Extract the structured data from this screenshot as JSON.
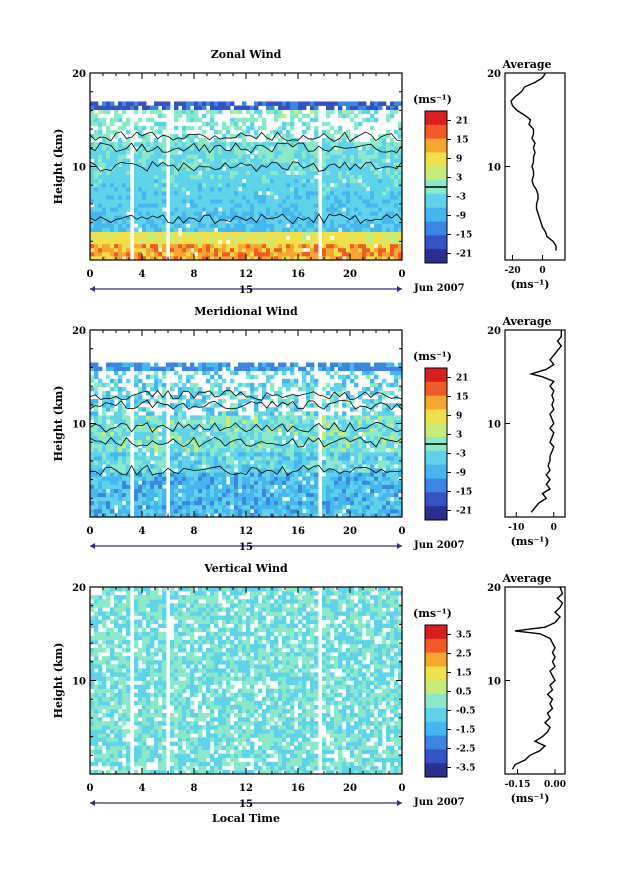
{
  "chart_data": [
    {
      "type": "heatmap",
      "title": "Zonal Wind",
      "ylabel": "Height (km)",
      "y_ticks": [
        "20",
        "10"
      ],
      "x_ticks": [
        "0",
        "4",
        "8",
        "12",
        "16",
        "20",
        "0"
      ],
      "day_label": "15",
      "date_label": "Jun 2007",
      "xlim": [
        0,
        24
      ],
      "ylim": [
        0,
        20
      ],
      "colorbar": {
        "unit": "(ms⁻¹)",
        "labels": [
          "21",
          "15",
          "9",
          "3",
          "-3",
          "-9",
          "-15",
          "-21"
        ],
        "range": [
          -24,
          24
        ]
      },
      "profile": {
        "title": "Average",
        "y_ticks": [
          "20",
          "10"
        ],
        "x_ticks": [
          "-20",
          "0"
        ],
        "xlabel": "(ms⁻¹)",
        "xlim": [
          -25,
          15
        ],
        "ylim": [
          0,
          20
        ],
        "points": [
          [
            9,
            1
          ],
          [
            9,
            1.5
          ],
          [
            7,
            2
          ],
          [
            3,
            2.5
          ],
          [
            2,
            3
          ],
          [
            0,
            3.5
          ],
          [
            -1,
            4
          ],
          [
            -2,
            4.5
          ],
          [
            -3,
            5
          ],
          [
            -4,
            5.5
          ],
          [
            -4,
            6
          ],
          [
            -3,
            6.5
          ],
          [
            -3,
            7
          ],
          [
            -4,
            7.5
          ],
          [
            -6,
            8
          ],
          [
            -7,
            8.5
          ],
          [
            -6,
            9
          ],
          [
            -6,
            9.5
          ],
          [
            -7,
            10
          ],
          [
            -6,
            10.5
          ],
          [
            -6,
            11
          ],
          [
            -5,
            11.5
          ],
          [
            -6,
            12
          ],
          [
            -5,
            12.5
          ],
          [
            -7,
            13
          ],
          [
            -6,
            13.5
          ],
          [
            -6,
            14
          ],
          [
            -9,
            14.5
          ],
          [
            -8,
            15
          ],
          [
            -12,
            15.5
          ],
          [
            -17,
            16
          ],
          [
            -20,
            16.5
          ],
          [
            -21,
            17
          ],
          [
            -18,
            17.5
          ],
          [
            -14,
            18
          ],
          [
            -12,
            18.5
          ],
          [
            -5,
            19
          ],
          [
            0,
            19.5
          ],
          [
            2,
            20
          ]
        ]
      }
    },
    {
      "type": "heatmap",
      "title": "Meridional Wind",
      "ylabel": "Height (km)",
      "y_ticks": [
        "20",
        "10"
      ],
      "x_ticks": [
        "0",
        "4",
        "8",
        "12",
        "16",
        "20",
        "0"
      ],
      "day_label": "15",
      "date_label": "Jun 2007",
      "xlim": [
        0,
        24
      ],
      "ylim": [
        0,
        20
      ],
      "colorbar": {
        "unit": "(ms⁻¹)",
        "labels": [
          "21",
          "15",
          "9",
          "3",
          "-3",
          "-9",
          "-15",
          "-21"
        ],
        "range": [
          -24,
          24
        ]
      },
      "profile": {
        "title": "Average",
        "y_ticks": [
          "20",
          "10"
        ],
        "x_ticks": [
          "-10",
          "0"
        ],
        "xlabel": "(ms⁻¹)",
        "xlim": [
          -13,
          3
        ],
        "ylim": [
          0,
          20
        ],
        "points": [
          [
            -6,
            0.5
          ],
          [
            -5,
            1
          ],
          [
            -4,
            1.5
          ],
          [
            -2,
            2
          ],
          [
            -3,
            2.5
          ],
          [
            -1,
            3
          ],
          [
            -2,
            3.5
          ],
          [
            -1,
            4
          ],
          [
            -2,
            4.5
          ],
          [
            -1,
            5
          ],
          [
            -1.5,
            5.5
          ],
          [
            -1,
            6
          ],
          [
            -1,
            6.5
          ],
          [
            -0.5,
            7
          ],
          [
            0,
            7.5
          ],
          [
            -1,
            8
          ],
          [
            -0.5,
            8.5
          ],
          [
            0,
            9
          ],
          [
            -1,
            9.5
          ],
          [
            0,
            10
          ],
          [
            -0.5,
            10.5
          ],
          [
            -1,
            11
          ],
          [
            0,
            11.5
          ],
          [
            -0.5,
            12
          ],
          [
            0,
            12.5
          ],
          [
            -0.5,
            13
          ],
          [
            0,
            13.5
          ],
          [
            -1,
            14
          ],
          [
            0,
            14.5
          ],
          [
            -3,
            15
          ],
          [
            -6,
            15.3
          ],
          [
            -2,
            15.8
          ],
          [
            0,
            16.3
          ],
          [
            -1,
            16.8
          ],
          [
            0,
            17.3
          ],
          [
            1,
            17.8
          ],
          [
            2,
            18.3
          ],
          [
            1,
            18.8
          ],
          [
            2,
            19.3
          ],
          [
            2,
            20
          ]
        ]
      }
    },
    {
      "type": "heatmap",
      "title": "Vertical Wind",
      "ylabel": "Height (km)",
      "xlabel": "Local Time",
      "y_ticks": [
        "20",
        "10"
      ],
      "x_ticks": [
        "0",
        "4",
        "8",
        "12",
        "16",
        "20",
        "0"
      ],
      "day_label": "15",
      "date_label": "Jun 2007",
      "xlim": [
        0,
        24
      ],
      "ylim": [
        0,
        20
      ],
      "colorbar": {
        "unit": "(ms⁻¹)",
        "labels": [
          "3.5",
          "2.5",
          "1.5",
          "0.5",
          "-0.5",
          "-1.5",
          "-2.5",
          "-3.5"
        ],
        "range": [
          -4,
          4
        ]
      },
      "profile": {
        "title": "Average",
        "y_ticks": [
          "20",
          "10"
        ],
        "x_ticks": [
          "-0.15",
          "0.00"
        ],
        "xlabel": "(ms⁻¹)",
        "xlim": [
          -0.2,
          0.04
        ],
        "ylim": [
          0,
          20
        ],
        "points": [
          [
            -0.17,
            0.5
          ],
          [
            -0.16,
            1
          ],
          [
            -0.12,
            1.5
          ],
          [
            -0.1,
            2
          ],
          [
            -0.06,
            2.5
          ],
          [
            -0.04,
            3
          ],
          [
            -0.08,
            3.5
          ],
          [
            -0.05,
            4
          ],
          [
            -0.03,
            4.5
          ],
          [
            -0.02,
            5
          ],
          [
            -0.04,
            5.5
          ],
          [
            -0.02,
            6
          ],
          [
            -0.03,
            6.5
          ],
          [
            -0.01,
            7
          ],
          [
            -0.02,
            7.5
          ],
          [
            -0.01,
            8
          ],
          [
            -0.03,
            8.5
          ],
          [
            -0.01,
            9
          ],
          [
            -0.02,
            9.5
          ],
          [
            0.0,
            10
          ],
          [
            -0.01,
            10.5
          ],
          [
            -0.02,
            11
          ],
          [
            0.0,
            11.5
          ],
          [
            -0.01,
            12
          ],
          [
            0.0,
            12.5
          ],
          [
            -0.01,
            13
          ],
          [
            0.0,
            13.5
          ],
          [
            -0.01,
            14
          ],
          [
            -0.02,
            14.5
          ],
          [
            -0.06,
            15
          ],
          [
            -0.16,
            15.3
          ],
          [
            -0.04,
            15.7
          ],
          [
            0.0,
            16.2
          ],
          [
            0.02,
            16.8
          ],
          [
            0.0,
            17.3
          ],
          [
            0.02,
            17.8
          ],
          [
            0.03,
            18.3
          ],
          [
            0.01,
            18.8
          ],
          [
            0.03,
            19.3
          ],
          [
            0.02,
            20
          ]
        ]
      }
    }
  ],
  "colors": {
    "scale": [
      "#2b2f8f",
      "#3552c4",
      "#3b86e0",
      "#45b6f0",
      "#5fd3ea",
      "#8be8c8",
      "#c6ec7a",
      "#f2e04a",
      "#f7a531",
      "#ef5a26",
      "#d81e1e"
    ]
  }
}
